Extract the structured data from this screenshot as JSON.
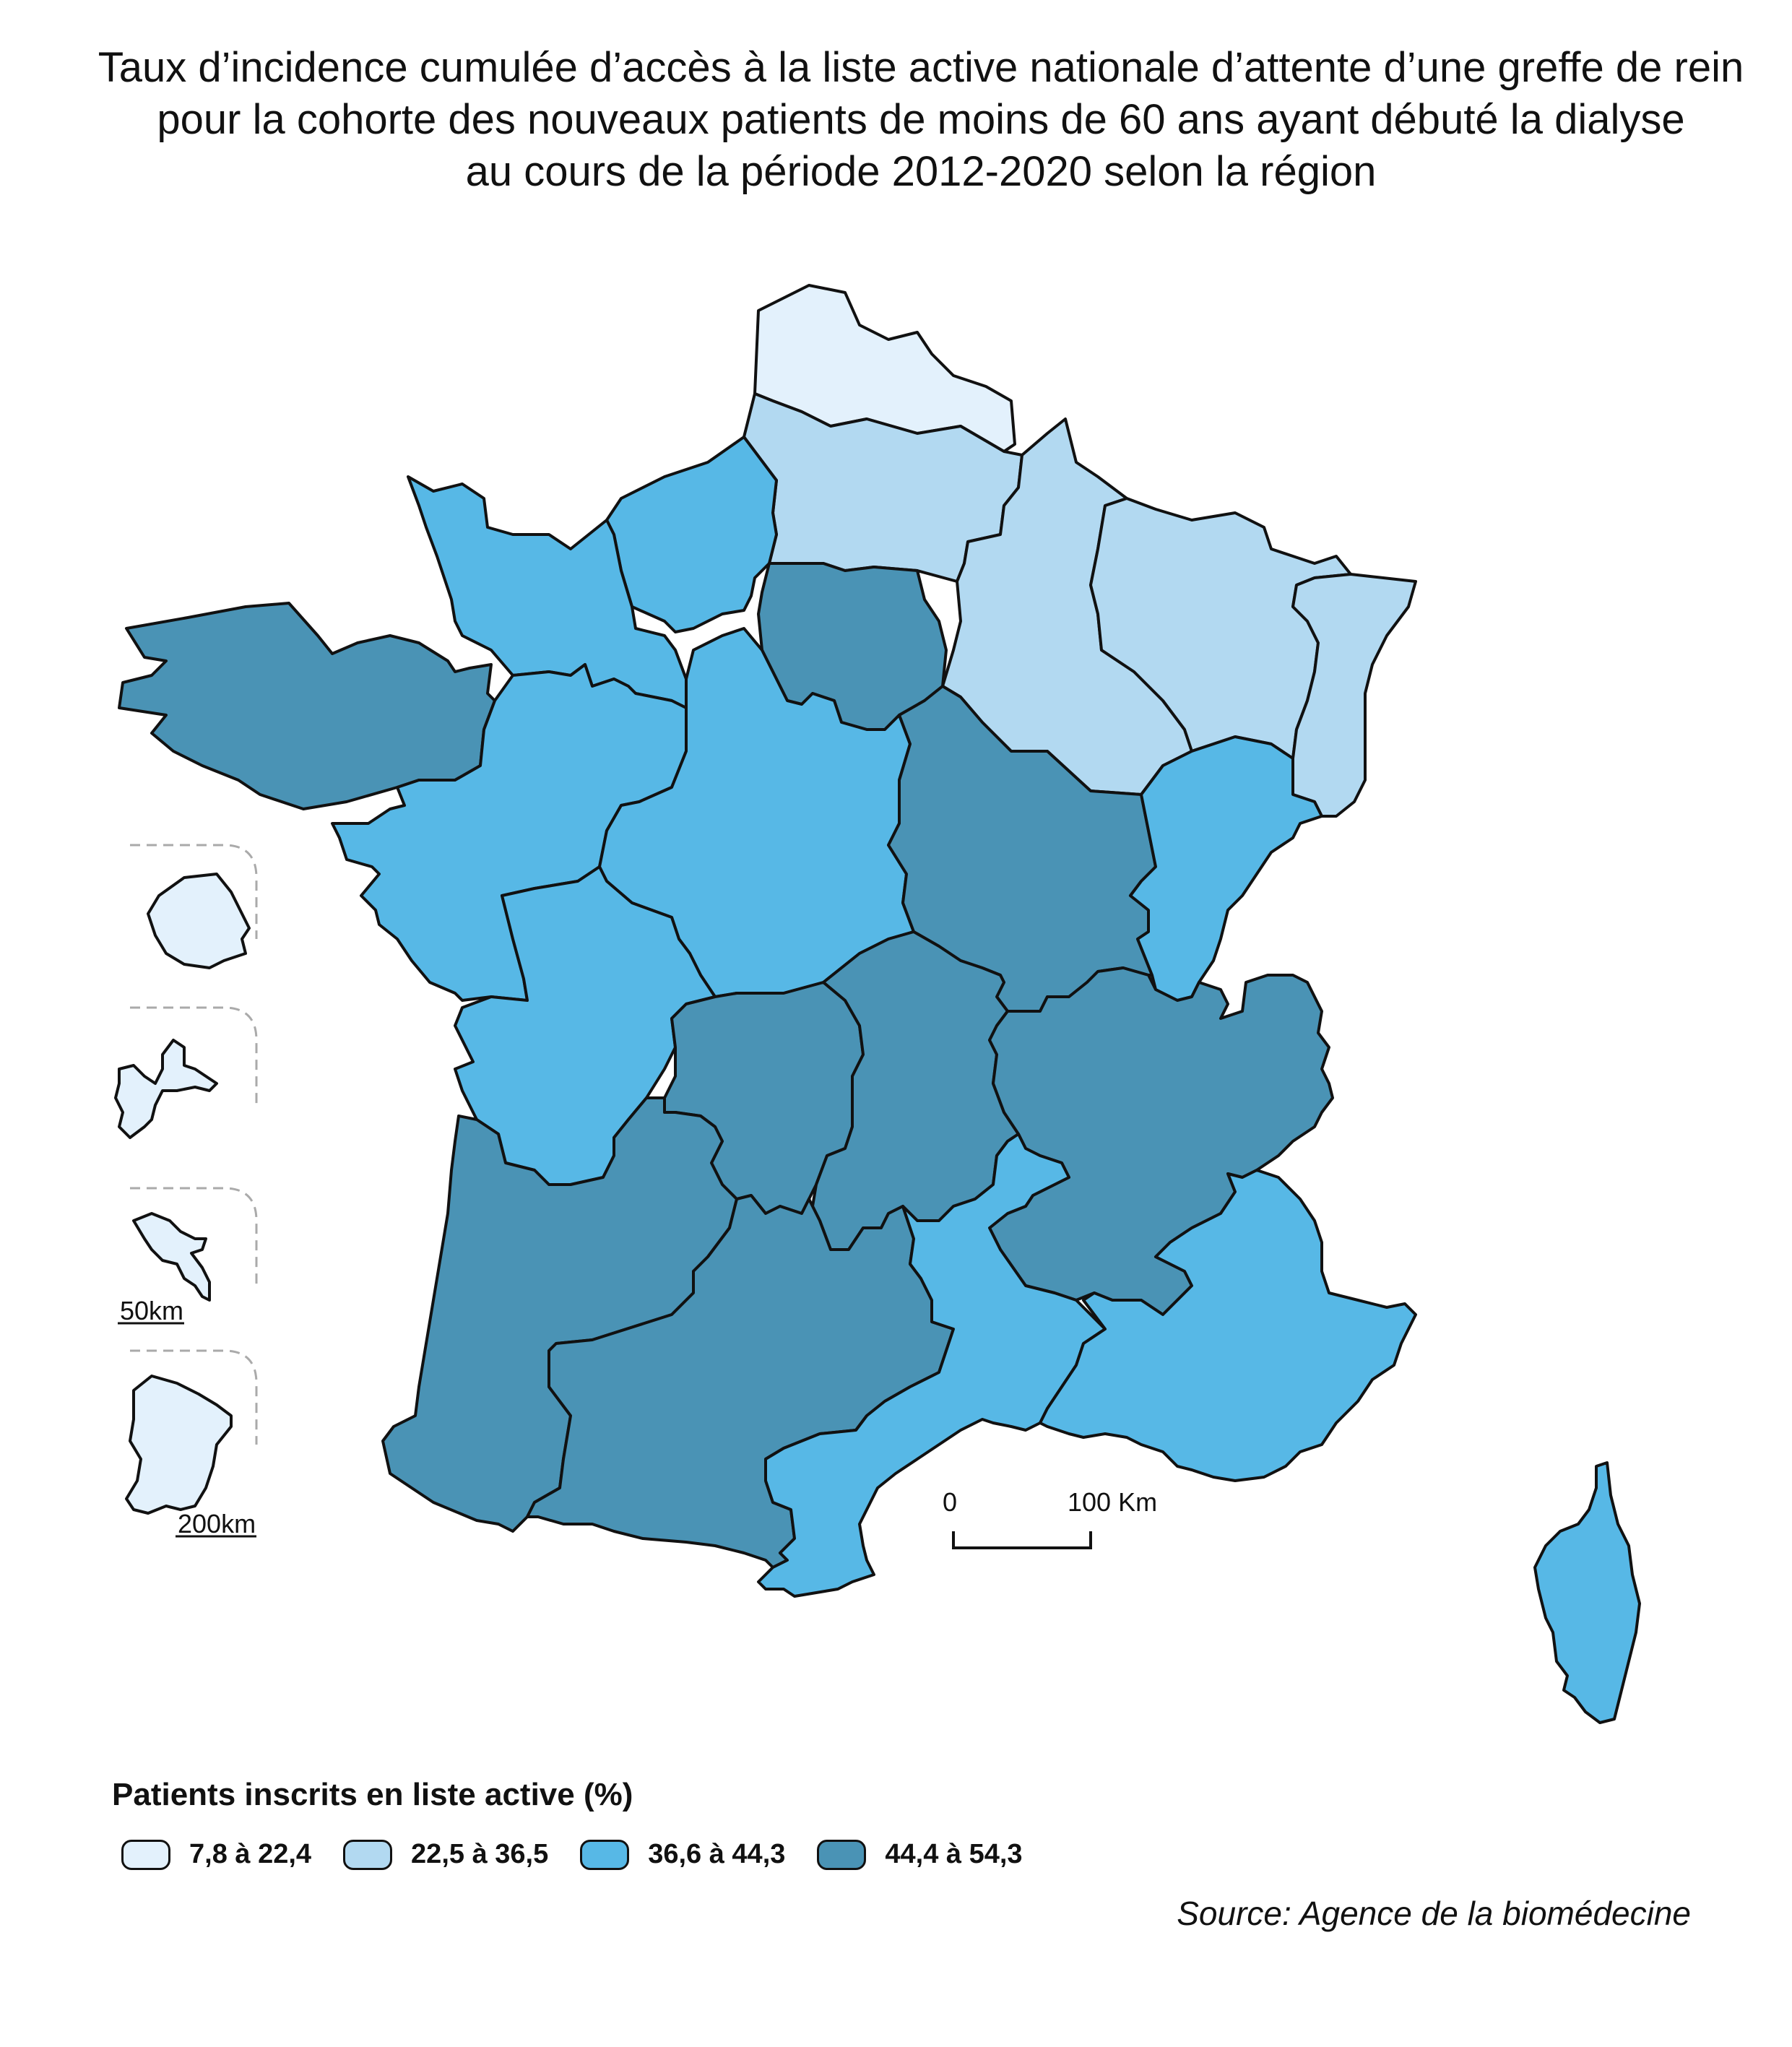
{
  "title": {
    "lines": [
      "Taux d’incidence cumulée d’accès à la liste active nationale d’attente d’une greffe de rein",
      "pour la cohorte des nouveaux patients de moins de 60 ans ayant débuté la dialyse",
      "au cours de la période 2012-2020 selon la région"
    ]
  },
  "legend": {
    "title": "Patients inscrits en liste active (%)",
    "classes": [
      {
        "label": "7,8 à 22,4",
        "color": "#e3f1fc"
      },
      {
        "label": "22,5 à 36,5",
        "color": "#b2d9f1"
      },
      {
        "label": "36,6 à 44,3",
        "color": "#57b8e6"
      },
      {
        "label": "44,4 à 54,3",
        "color": "#4a93b5"
      }
    ]
  },
  "regions": [
    {
      "id": "nord",
      "class": 0
    },
    {
      "id": "picardie",
      "class": 1
    },
    {
      "id": "champagne-ardenne",
      "class": 1
    },
    {
      "id": "lorraine",
      "class": 1
    },
    {
      "id": "alsace",
      "class": 1
    },
    {
      "id": "haute-normandie",
      "class": 2
    },
    {
      "id": "basse-normandie",
      "class": 2
    },
    {
      "id": "bretagne",
      "class": 3
    },
    {
      "id": "ile-de-france",
      "class": 3
    },
    {
      "id": "pays-de-la-loire",
      "class": 2
    },
    {
      "id": "centre",
      "class": 2
    },
    {
      "id": "bourgogne",
      "class": 3
    },
    {
      "id": "franche-comte",
      "class": 2
    },
    {
      "id": "poitou-charentes",
      "class": 2
    },
    {
      "id": "limousin",
      "class": 3
    },
    {
      "id": "auvergne",
      "class": 3
    },
    {
      "id": "rhone-alpes",
      "class": 3
    },
    {
      "id": "aquitaine",
      "class": 3
    },
    {
      "id": "midi-pyrenees",
      "class": 3
    },
    {
      "id": "languedoc-roussillon",
      "class": 2
    },
    {
      "id": "paca",
      "class": 2
    },
    {
      "id": "corse",
      "class": 2
    },
    {
      "id": "la-reunion",
      "class": 0
    },
    {
      "id": "guadeloupe",
      "class": 0
    },
    {
      "id": "martinique",
      "class": 0
    },
    {
      "id": "guyane",
      "class": 0
    }
  ],
  "insets": {
    "scale_small": "50km",
    "scale_large": "200km"
  },
  "scale_bar": {
    "start_label": "0",
    "end_label": "100 Km"
  },
  "source": "Source: Agence de la biomédecine"
}
